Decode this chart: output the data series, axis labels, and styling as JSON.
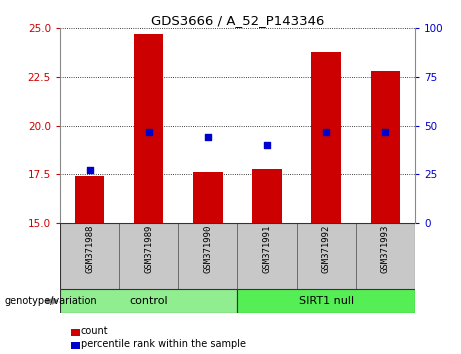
{
  "title": "GDS3666 / A_52_P143346",
  "samples": [
    "GSM371988",
    "GSM371989",
    "GSM371990",
    "GSM371991",
    "GSM371992",
    "GSM371993"
  ],
  "counts": [
    17.4,
    24.7,
    17.6,
    17.8,
    23.8,
    22.8
  ],
  "percentiles": [
    27,
    47,
    44,
    40,
    47,
    47
  ],
  "ylim_left": [
    15,
    25
  ],
  "ylim_right": [
    0,
    100
  ],
  "yticks_left": [
    15,
    17.5,
    20,
    22.5,
    25
  ],
  "yticks_right": [
    0,
    25,
    50,
    75,
    100
  ],
  "bar_color": "#CC0000",
  "dot_color": "#0000CC",
  "bar_width": 0.5,
  "dot_size": 25,
  "bg_color": "#FFFFFF",
  "plot_bg": "#FFFFFF",
  "left_tick_color": "#CC0000",
  "right_tick_color": "#0000CC",
  "sample_bg": "#C8C8C8",
  "control_color": "#90EE90",
  "sirt1_color": "#55EE55",
  "legend_items": [
    {
      "label": "count",
      "color": "#CC0000"
    },
    {
      "label": "percentile rank within the sample",
      "color": "#0000CC"
    }
  ],
  "genotype_label": "genotype/variation"
}
